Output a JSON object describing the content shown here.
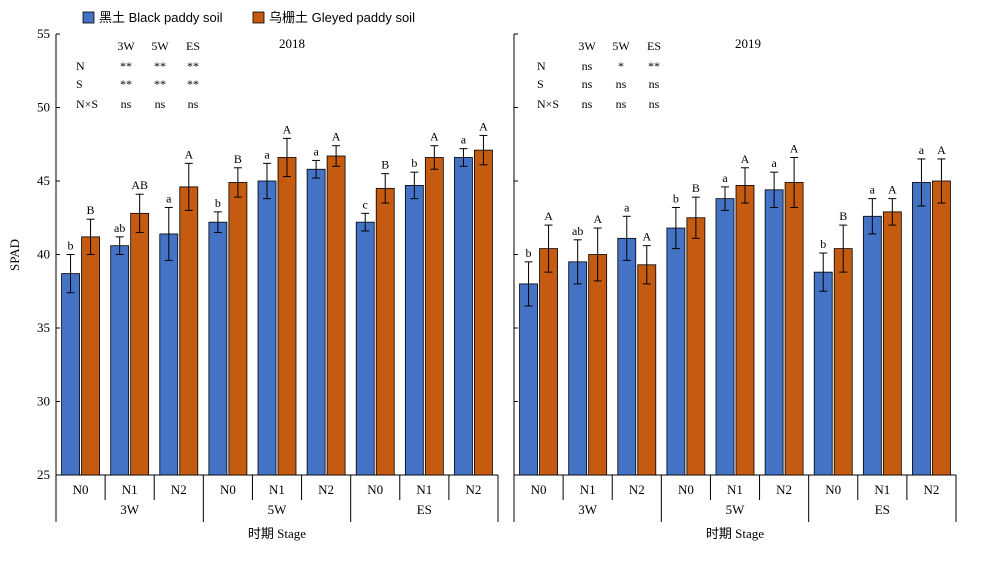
{
  "legend": {
    "black_label": "黑土 Black paddy soil",
    "gleyed_label": "乌栅土 Gleyed paddy soil"
  },
  "colors": {
    "black": "#4472C4",
    "gleyed": "#C55A11",
    "axis": "#000000"
  },
  "ylabel": "SPAD",
  "y_ticks": [
    "25",
    "30",
    "35",
    "40",
    "45",
    "50",
    "55"
  ],
  "x_axis_title": "时期 Stage",
  "chart_data": [
    {
      "type": "bar",
      "title": "2018",
      "ylabel": "SPAD",
      "xlabel": "时期 Stage",
      "ylim": [
        25,
        55
      ],
      "stages": [
        "3W",
        "5W",
        "ES"
      ],
      "categories": [
        "N0",
        "N1",
        "N2",
        "N0",
        "N1",
        "N2",
        "N0",
        "N1",
        "N2"
      ],
      "series": [
        {
          "name": "黑土 Black paddy soil",
          "values": [
            38.7,
            40.6,
            41.4,
            42.2,
            45.0,
            45.8,
            42.2,
            44.7,
            46.6
          ],
          "errors": [
            1.3,
            0.6,
            1.8,
            0.7,
            1.2,
            0.6,
            0.6,
            0.9,
            0.6
          ],
          "letters": [
            "b",
            "ab",
            "a",
            "b",
            "a",
            "a",
            "c",
            "b",
            "a"
          ]
        },
        {
          "name": "乌栅土 Gleyed paddy soil",
          "values": [
            41.2,
            42.8,
            44.6,
            44.9,
            46.6,
            46.7,
            44.5,
            46.6,
            47.1
          ],
          "errors": [
            1.2,
            1.3,
            1.6,
            1.0,
            1.3,
            0.7,
            1.0,
            0.8,
            1.0
          ],
          "letters": [
            "B",
            "AB",
            "A",
            "B",
            "A",
            "A",
            "B",
            "A",
            "A"
          ]
        }
      ],
      "significance": {
        "columns": [
          "3W",
          "5W",
          "ES"
        ],
        "rows": [
          {
            "label": "N",
            "values": [
              "**",
              "**",
              "**"
            ]
          },
          {
            "label": "S",
            "values": [
              "**",
              "**",
              "**"
            ]
          },
          {
            "label": "N×S",
            "values": [
              "ns",
              "ns",
              "ns"
            ]
          }
        ]
      }
    },
    {
      "type": "bar",
      "title": "2019",
      "ylabel": "",
      "xlabel": "时期 Stage",
      "ylim": [
        25,
        55
      ],
      "stages": [
        "3W",
        "5W",
        "ES"
      ],
      "categories": [
        "N0",
        "N1",
        "N2",
        "N0",
        "N1",
        "N2",
        "N0",
        "N1",
        "N2"
      ],
      "series": [
        {
          "name": "黑土 Black paddy soil",
          "values": [
            38.0,
            39.5,
            41.1,
            41.8,
            43.8,
            44.4,
            38.8,
            42.6,
            44.9
          ],
          "errors": [
            1.5,
            1.5,
            1.5,
            1.4,
            0.8,
            1.2,
            1.3,
            1.2,
            1.6
          ],
          "letters": [
            "b",
            "ab",
            "a",
            "b",
            "a",
            "a",
            "b",
            "a",
            "a"
          ]
        },
        {
          "name": "乌栅土 Gleyed paddy soil",
          "values": [
            40.4,
            40.0,
            39.3,
            42.5,
            44.7,
            44.9,
            40.4,
            42.9,
            45.0
          ],
          "errors": [
            1.6,
            1.8,
            1.3,
            1.4,
            1.2,
            1.7,
            1.6,
            0.9,
            1.5
          ],
          "letters": [
            "A",
            "A",
            "A",
            "B",
            "A",
            "A",
            "B",
            "A",
            "A"
          ]
        }
      ],
      "significance": {
        "columns": [
          "3W",
          "5W",
          "ES"
        ],
        "rows": [
          {
            "label": "N",
            "values": [
              "ns",
              "*",
              "**"
            ]
          },
          {
            "label": "S",
            "values": [
              "ns",
              "ns",
              "ns"
            ]
          },
          {
            "label": "N×S",
            "values": [
              "ns",
              "ns",
              "ns"
            ]
          }
        ]
      }
    }
  ]
}
